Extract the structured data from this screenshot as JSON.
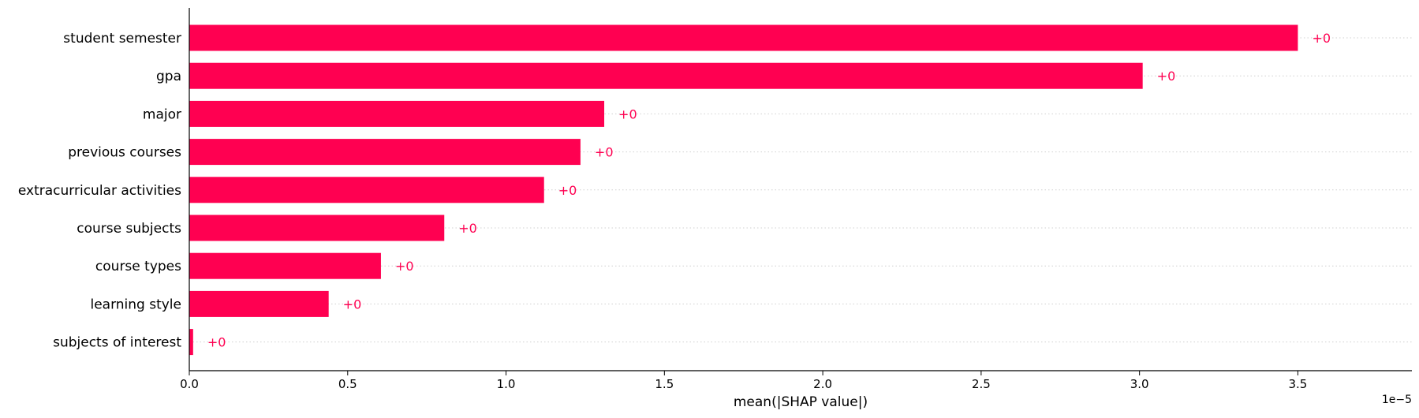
{
  "chart_data": {
    "type": "bar",
    "orientation": "horizontal",
    "categories": [
      "student semester",
      "gpa",
      "major",
      "previous courses",
      "extracurricular activities",
      "course subjects",
      "course types",
      "learning style",
      "subjects of interest"
    ],
    "values": [
      3.5,
      3.01,
      1.31,
      1.235,
      1.12,
      0.805,
      0.605,
      0.44,
      0.012
    ],
    "bar_labels": [
      "+0",
      "+0",
      "+0",
      "+0",
      "+0",
      "+0",
      "+0",
      "+0",
      "+0"
    ],
    "xlabel": "mean(|SHAP value|)",
    "x_offset_label": "1e−5",
    "xlim": [
      0,
      3.86
    ],
    "xticks": [
      0.0,
      0.5,
      1.0,
      1.5,
      2.0,
      2.5,
      3.0,
      3.5
    ],
    "xtick_labels": [
      "0.0",
      "0.5",
      "1.0",
      "1.5",
      "2.0",
      "2.5",
      "3.0",
      "3.5"
    ],
    "grid": "horizontal dotted",
    "colors": {
      "bar": "#ff0051",
      "label": "#ff0051",
      "grid": "#d0d0d0",
      "axis": "#000000"
    }
  }
}
